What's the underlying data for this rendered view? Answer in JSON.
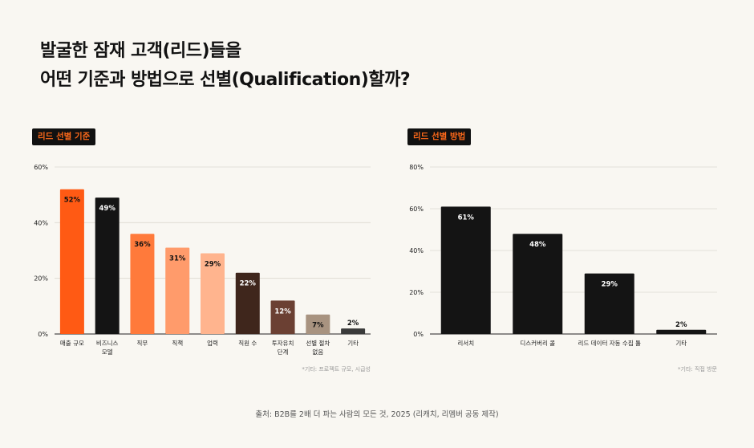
{
  "title": {
    "line1": "발굴한 잠재 고객(리드)들을",
    "line2": "어떤 기준과 방법으로 선별(Qualification)할까?"
  },
  "source": "출처: B2B를 2배 더 파는 사람의 모든 것, 2025 (리캐치, 리멤버 공동 제작)",
  "colors": {
    "background": "#f9f7f2",
    "badge_text": "#ff6a1a",
    "badge_bg": "#111111"
  },
  "chart_data": [
    {
      "type": "bar",
      "badge": "리드 선별 기준",
      "title": "",
      "xlabel": "",
      "ylabel": "",
      "ylim": [
        0,
        60
      ],
      "yticks": [
        0,
        20,
        40,
        60
      ],
      "ytick_labels": [
        "0%",
        "20%",
        "40%",
        "60%"
      ],
      "grid": true,
      "categories": [
        [
          "매출 규모"
        ],
        [
          "비즈니스",
          "모델"
        ],
        [
          "직무"
        ],
        [
          "직책"
        ],
        [
          "업력"
        ],
        [
          "직원 수"
        ],
        [
          "투자유치",
          "단계"
        ],
        [
          "선별 절차",
          "없음"
        ],
        [
          "기타"
        ]
      ],
      "values": [
        52,
        49,
        36,
        31,
        29,
        22,
        12,
        7,
        2
      ],
      "labels": [
        "52%",
        "49%",
        "36%",
        "31%",
        "29%",
        "22%",
        "12%",
        "7%",
        "2%"
      ],
      "bar_colors": [
        "#ff5a14",
        "#141414",
        "#ff7a3b",
        "#ff9b6b",
        "#ffb48e",
        "#3f261c",
        "#6b4033",
        "#a89380",
        "#3a3a3a"
      ],
      "label_colors": [
        "#111111",
        "#ffffff",
        "#111111",
        "#111111",
        "#111111",
        "#ffffff",
        "#ffffff",
        "#111111",
        "#111111"
      ],
      "note": "*기타: 프로젝트 규모, 시급성"
    },
    {
      "type": "bar",
      "badge": "리드 선별 방법",
      "title": "",
      "xlabel": "",
      "ylabel": "",
      "ylim": [
        0,
        80
      ],
      "yticks": [
        0,
        20,
        40,
        60,
        80
      ],
      "ytick_labels": [
        "0%",
        "20%",
        "40%",
        "60%",
        "80%"
      ],
      "grid": true,
      "categories": [
        [
          "리서치"
        ],
        [
          "디스커버리 콜"
        ],
        [
          "리드 데이터 자동 수집 툴"
        ],
        [
          "기타"
        ]
      ],
      "values": [
        61,
        48,
        29,
        2
      ],
      "labels": [
        "61%",
        "48%",
        "29%",
        "2%"
      ],
      "bar_colors": [
        "#141414",
        "#141414",
        "#141414",
        "#141414"
      ],
      "label_colors": [
        "#ffffff",
        "#ffffff",
        "#ffffff",
        "#111111"
      ],
      "note": "*기타: 직접 방문"
    }
  ]
}
